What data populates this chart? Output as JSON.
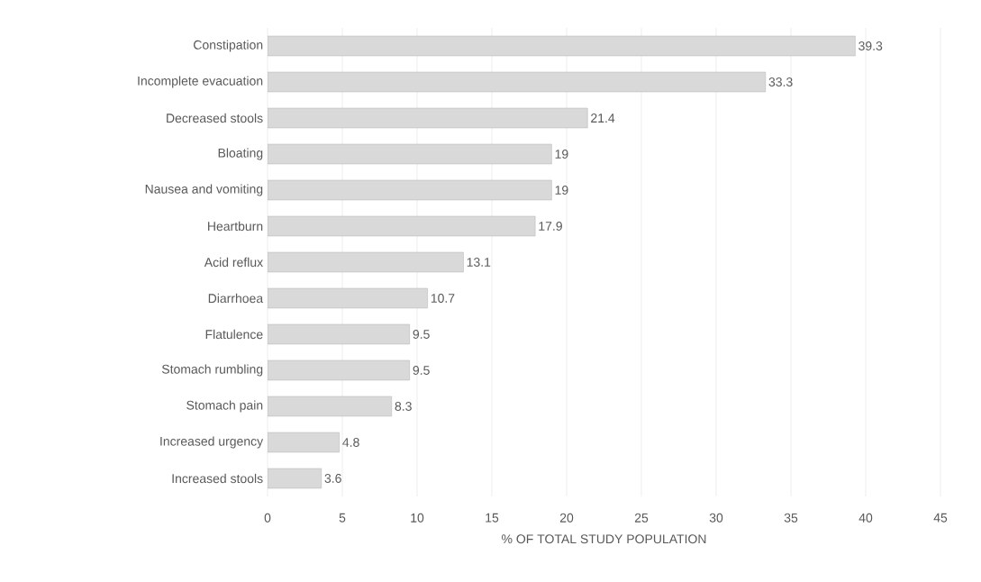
{
  "chart_data": {
    "type": "bar",
    "orientation": "horizontal",
    "xlabel": "% OF TOTAL STUDY POPULATION",
    "categories": [
      "Constipation",
      "Incomplete evacuation",
      "Decreased stools",
      "Bloating",
      "Nausea and vomiting",
      "Heartburn",
      "Acid reflux",
      "Diarrhoea",
      "Flatulence",
      "Stomach rumbling",
      "Stomach pain",
      "Increased urgency",
      "Increased stools"
    ],
    "values": [
      39.3,
      33.3,
      21.4,
      19,
      19,
      17.9,
      13.1,
      10.7,
      9.5,
      9.5,
      8.3,
      4.8,
      3.6
    ],
    "color": "#d9d9d9",
    "xlim": [
      0,
      45
    ],
    "xticks": [
      0,
      5,
      10,
      15,
      20,
      25,
      30,
      35,
      40,
      45
    ],
    "grid": "x",
    "data_labels": true
  }
}
